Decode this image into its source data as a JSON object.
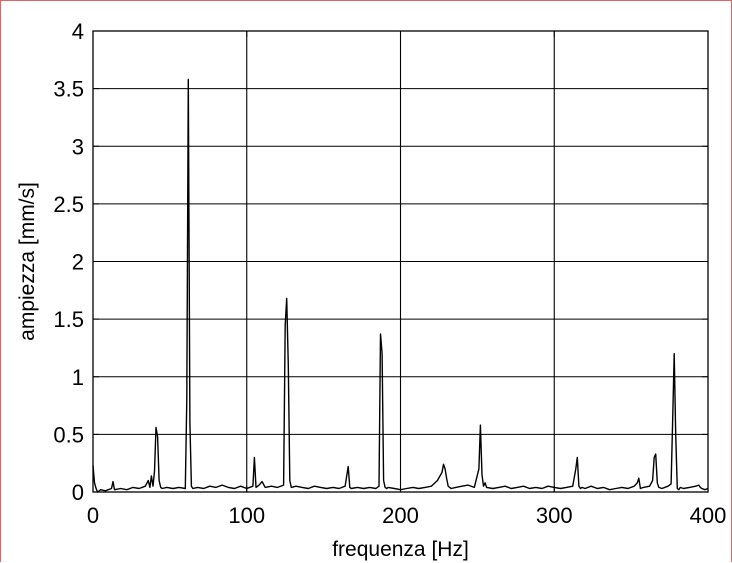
{
  "chart_data": {
    "type": "line",
    "title": "",
    "xlabel": "frequenza [Hz]",
    "ylabel": "ampiezza [mm/s]",
    "xlim": [
      0,
      400
    ],
    "ylim": [
      0,
      4
    ],
    "x_ticks": [
      0,
      100,
      200,
      300,
      400
    ],
    "x_tick_labels": [
      "0",
      "100",
      "200",
      "300",
      "400"
    ],
    "y_ticks": [
      0,
      0.5,
      1,
      1.5,
      2,
      2.5,
      3,
      3.5,
      4
    ],
    "y_tick_labels": [
      "0",
      "0.5",
      "1",
      "1.5",
      "2",
      "2.5",
      "3",
      "3.5",
      "4"
    ],
    "grid": true,
    "line_color": "#000000",
    "series": [
      {
        "x": [
          0,
          1,
          2,
          3,
          5,
          8,
          12,
          13,
          14,
          18,
          22,
          26,
          30,
          34,
          36,
          37,
          38,
          39,
          40,
          41,
          42,
          43,
          44,
          45,
          48,
          52,
          56,
          60,
          61,
          62,
          63,
          64,
          65,
          68,
          72,
          76,
          80,
          84,
          88,
          92,
          96,
          100,
          104,
          105,
          106,
          108,
          110,
          112,
          116,
          120,
          124,
          125,
          126,
          127,
          128,
          129,
          132,
          136,
          140,
          144,
          148,
          152,
          156,
          160,
          164,
          166,
          167,
          168,
          172,
          176,
          180,
          184,
          186,
          187,
          188,
          189,
          190,
          191,
          192,
          196,
          200,
          204,
          208,
          212,
          216,
          220,
          224,
          227,
          228,
          229,
          230,
          231,
          232,
          233,
          236,
          240,
          244,
          248,
          251,
          252,
          253,
          254,
          255,
          256,
          260,
          264,
          268,
          272,
          276,
          280,
          284,
          288,
          292,
          296,
          300,
          304,
          308,
          312,
          314,
          315,
          316,
          317,
          318,
          320,
          324,
          328,
          332,
          336,
          340,
          344,
          348,
          352,
          354,
          355,
          356,
          358,
          362,
          364,
          365,
          366,
          367,
          368,
          370,
          374,
          376,
          377,
          378,
          379,
          380,
          381,
          382,
          384,
          388,
          392,
          394,
          395,
          396,
          398,
          400
        ],
        "y": [
          0.23,
          0.08,
          0.03,
          0.0,
          0.02,
          0.01,
          0.03,
          0.09,
          0.02,
          0.03,
          0.02,
          0.04,
          0.03,
          0.05,
          0.1,
          0.04,
          0.14,
          0.05,
          0.18,
          0.56,
          0.48,
          0.1,
          0.04,
          0.03,
          0.04,
          0.03,
          0.04,
          0.03,
          0.8,
          3.58,
          0.6,
          0.05,
          0.03,
          0.04,
          0.03,
          0.05,
          0.04,
          0.06,
          0.04,
          0.03,
          0.05,
          0.03,
          0.05,
          0.3,
          0.04,
          0.06,
          0.09,
          0.04,
          0.05,
          0.04,
          0.06,
          1.45,
          1.68,
          1.1,
          0.1,
          0.04,
          0.05,
          0.04,
          0.03,
          0.05,
          0.04,
          0.03,
          0.04,
          0.03,
          0.05,
          0.22,
          0.04,
          0.03,
          0.04,
          0.03,
          0.04,
          0.03,
          0.05,
          1.37,
          1.2,
          0.1,
          0.04,
          0.03,
          0.04,
          0.03,
          0.02,
          0.03,
          0.04,
          0.03,
          0.04,
          0.05,
          0.1,
          0.17,
          0.24,
          0.2,
          0.12,
          0.05,
          0.04,
          0.03,
          0.04,
          0.05,
          0.06,
          0.04,
          0.2,
          0.58,
          0.15,
          0.05,
          0.08,
          0.04,
          0.03,
          0.04,
          0.05,
          0.03,
          0.04,
          0.05,
          0.03,
          0.04,
          0.03,
          0.05,
          0.04,
          0.03,
          0.04,
          0.05,
          0.2,
          0.3,
          0.05,
          0.03,
          0.04,
          0.03,
          0.05,
          0.03,
          0.04,
          0.02,
          0.03,
          0.04,
          0.03,
          0.05,
          0.08,
          0.12,
          0.03,
          0.04,
          0.05,
          0.1,
          0.3,
          0.33,
          0.08,
          0.04,
          0.03,
          0.05,
          0.07,
          0.6,
          1.2,
          0.5,
          0.03,
          0.02,
          0.04,
          0.03,
          0.04,
          0.05,
          0.06,
          0.04,
          0.03,
          0.02,
          0.03
        ]
      }
    ]
  }
}
